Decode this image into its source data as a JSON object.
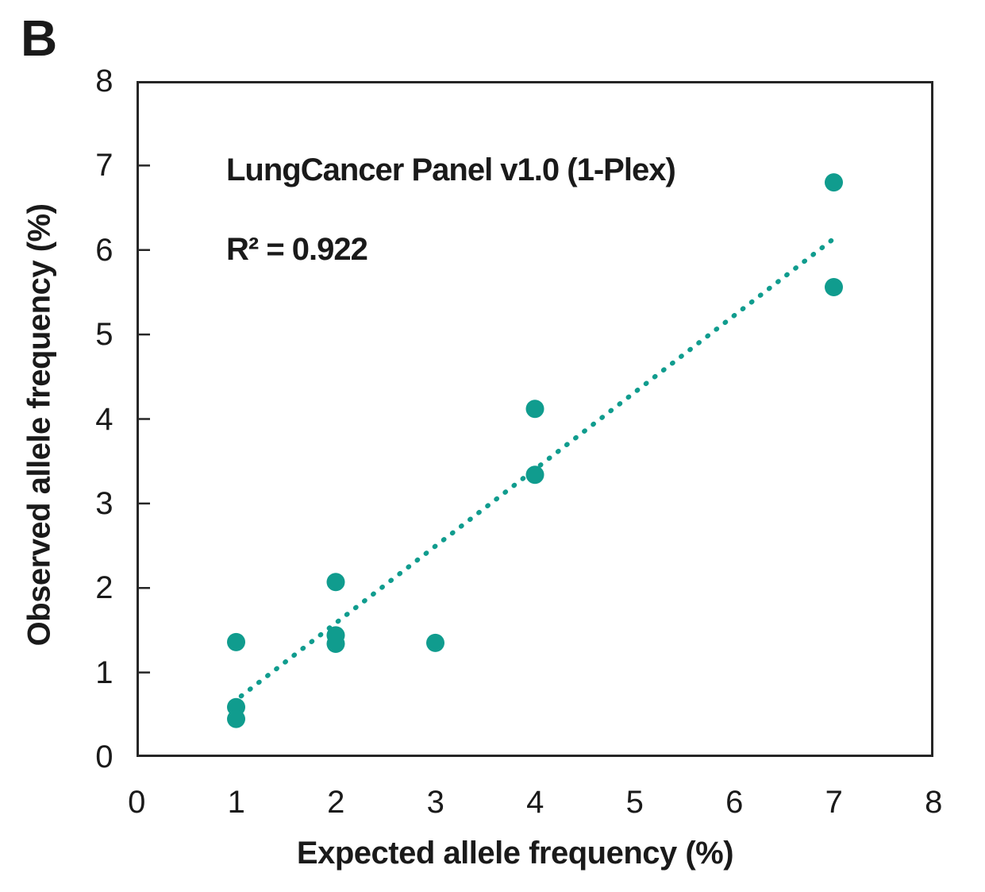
{
  "panel_label": "B",
  "annotation": {
    "title": "LungCancer Panel v1.0 (1-Plex)",
    "r_squared_text": "R² = 0.922"
  },
  "chart_data": {
    "type": "scatter",
    "title": "LungCancer Panel v1.0 (1-Plex)",
    "r_squared": 0.922,
    "xlabel": "Expected allele frequency (%)",
    "ylabel": "Observed allele frequency (%)",
    "xlim": [
      0,
      8
    ],
    "ylim": [
      0,
      8
    ],
    "x_ticks": [
      0,
      1,
      2,
      3,
      4,
      5,
      6,
      7,
      8
    ],
    "y_ticks": [
      0,
      1,
      2,
      3,
      4,
      5,
      6,
      7,
      8
    ],
    "grid": false,
    "legend": "none",
    "points": [
      {
        "x": 1,
        "y": 1.36
      },
      {
        "x": 1,
        "y": 0.59
      },
      {
        "x": 1,
        "y": 0.45
      },
      {
        "x": 2,
        "y": 2.07
      },
      {
        "x": 2,
        "y": 1.44
      },
      {
        "x": 2,
        "y": 1.34
      },
      {
        "x": 3,
        "y": 1.35
      },
      {
        "x": 4,
        "y": 4.12
      },
      {
        "x": 4,
        "y": 3.34
      },
      {
        "x": 7,
        "y": 6.8
      },
      {
        "x": 7,
        "y": 5.56
      }
    ],
    "trendline": {
      "style": "dotted",
      "x1": 1.05,
      "y1": 0.72,
      "x2": 7.05,
      "y2": 6.18
    },
    "colors": {
      "marker": "#109c8e",
      "trendline": "#109c8e",
      "axis": "#262626",
      "text": "#1a1a1a"
    },
    "marker_radius": 11.5
  }
}
